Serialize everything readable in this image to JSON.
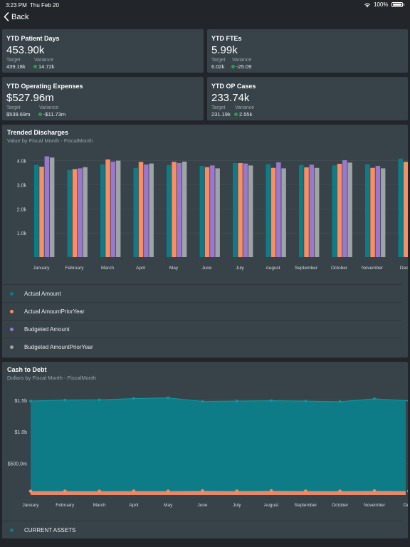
{
  "status_bar": {
    "time": "3:23 PM",
    "date": "Thu Feb 20",
    "battery": "100%"
  },
  "nav": {
    "back_label": "Back"
  },
  "colors": {
    "green": "#21a34a",
    "teal": "#0e7c86",
    "orange": "#fb8d62",
    "purple": "#9a78cf",
    "gray": "#9ea3a6"
  },
  "kpis": [
    {
      "title": "YTD Patient Days",
      "value": "453.90k",
      "target_label": "Target",
      "target": "439.18k",
      "variance_label": "Variance",
      "variance": "14.72k"
    },
    {
      "title": "YTD FTEs",
      "value": "5.99k",
      "target_label": "Target",
      "target": "6.02k",
      "variance_label": "Variance",
      "variance": "-25.09"
    },
    {
      "title": "YTD Operating Expenses",
      "value": "$527.96m",
      "target_label": "Target",
      "target": "$539.69m",
      "variance_label": "Variance",
      "variance": "-$11.73m"
    },
    {
      "title": "YTD OP Cases",
      "value": "233.74k",
      "target_label": "Target",
      "target": "231.19k",
      "variance_label": "Variance",
      "variance": "2.55k"
    }
  ],
  "chart_data": [
    {
      "type": "bar",
      "title": "Trended Discharges",
      "subtitle": "Value by Fiscal Month - FiscalMonth",
      "categories": [
        "January",
        "February",
        "March",
        "April",
        "May",
        "June",
        "July",
        "August",
        "September",
        "October",
        "November",
        "Dece"
      ],
      "ylim": [
        0,
        4400
      ],
      "yticks": [
        1000,
        2000,
        3000,
        4000
      ],
      "ytick_labels": [
        "1.0k",
        "2.0k",
        "3.0k",
        "4.0k"
      ],
      "grid": true,
      "legend_position": "bottom",
      "series": [
        {
          "name": "Actual Amount",
          "color": "#0e7c86",
          "values": [
            3820,
            3620,
            3850,
            3700,
            3820,
            3780,
            3900,
            3850,
            3820,
            3800,
            3850,
            4080
          ]
        },
        {
          "name": "Actual AmountPriorYear",
          "color": "#fb8d62",
          "values": [
            3750,
            3650,
            4050,
            3950,
            3950,
            3730,
            3900,
            3700,
            3720,
            3870,
            3700,
            3950
          ]
        },
        {
          "name": "Budgeted Amount",
          "color": "#9a78cf",
          "values": [
            4180,
            3680,
            3960,
            3840,
            3900,
            3800,
            3880,
            3930,
            3830,
            4020,
            3780,
            null
          ]
        },
        {
          "name": "Budgeted AmountPriorYear",
          "color": "#9ea3a6",
          "values": [
            4130,
            3730,
            4000,
            3880,
            3960,
            3680,
            3800,
            3680,
            3700,
            3920,
            3680,
            null
          ]
        }
      ]
    },
    {
      "type": "area",
      "title": "Cash to Debt",
      "subtitle": "Dollars by Fiscal Month - FiscalMonth",
      "categories": [
        "January",
        "February",
        "March",
        "April",
        "May",
        "June",
        "July",
        "August",
        "September",
        "October",
        "November",
        "Dece"
      ],
      "ylim": [
        0,
        1700
      ],
      "yticks": [
        500,
        1000,
        1500
      ],
      "ytick_labels": [
        "$500.0m",
        "$1.0b",
        "$1.5b"
      ],
      "grid": true,
      "legend_position": "bottom",
      "series": [
        {
          "name": "CURRENT ASSETS",
          "color": "#0e7c86",
          "values": [
            1485,
            1500,
            1505,
            1525,
            1535,
            1480,
            1485,
            1490,
            1485,
            1475,
            1520,
            1490
          ]
        },
        {
          "name": "",
          "color": "#fb8d62",
          "values": [
            60,
            62,
            60,
            62,
            60,
            65,
            62,
            65,
            62,
            60,
            65,
            62
          ]
        }
      ]
    }
  ]
}
